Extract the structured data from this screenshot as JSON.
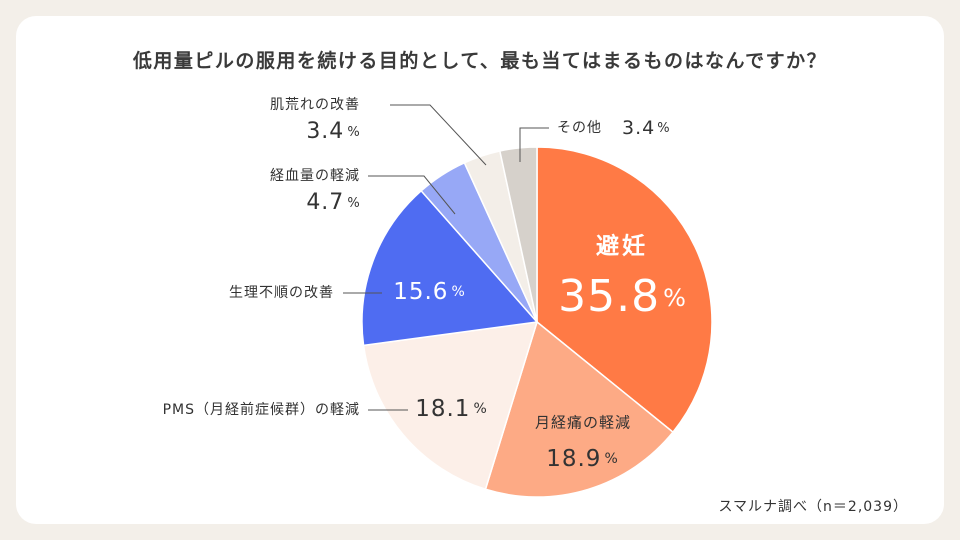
{
  "chart_data": {
    "type": "pie",
    "title": "低用量ピルの服用を続ける目的として、最も当てはまるものはなんですか？",
    "source": "スマルナ調べ（n＝2,039）",
    "unit": "%",
    "slices": [
      {
        "label": "避妊",
        "value": 35.8,
        "value_text": "35.8",
        "color": "#ff7a45",
        "text_color": "#ffffff"
      },
      {
        "label": "月経痛の軽減",
        "value": 18.9,
        "value_text": "18.9",
        "color": "#fdaa85",
        "text_color": "#333333"
      },
      {
        "label": "PMS（月経前症候群）の軽減",
        "value": 18.1,
        "value_text": "18.1",
        "color": "#fcefe8",
        "text_color": "#333333"
      },
      {
        "label": "生理不順の改善",
        "value": 15.6,
        "value_text": "15.6",
        "color": "#4f6cf2",
        "text_color": "#ffffff"
      },
      {
        "label": "経血量の軽減",
        "value": 4.7,
        "value_text": "4.7",
        "color": "#97a8f6",
        "text_color": "#333333"
      },
      {
        "label": "肌荒れの改善",
        "value": 3.4,
        "value_text": "3.4",
        "color": "#f3eee8",
        "text_color": "#333333"
      },
      {
        "label": "その他",
        "value": 3.4,
        "value_text": "3.4",
        "color": "#d6d1cb",
        "text_color": "#333333"
      }
    ]
  }
}
